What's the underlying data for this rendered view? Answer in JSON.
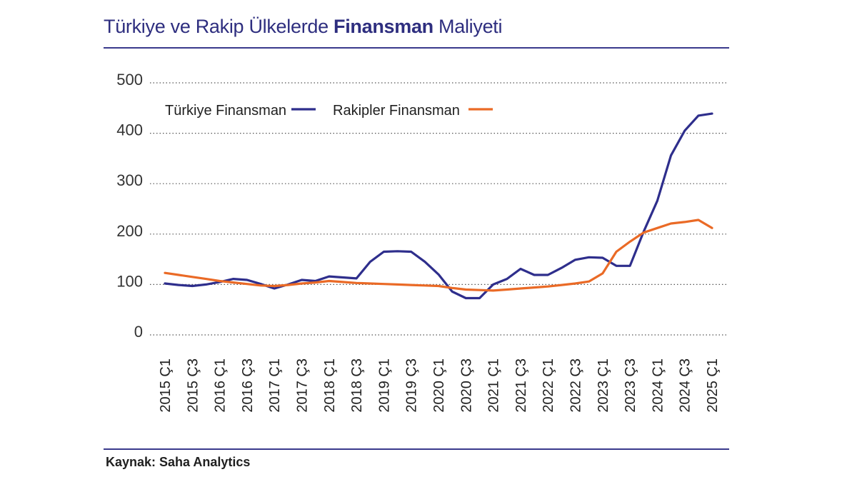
{
  "header": {
    "title_pre": "Türkiye ve Rakip Ülkelerde ",
    "title_bold": "Finansman",
    "title_post": " Maliyeti"
  },
  "footer": {
    "source": "Kaynak: Saha Analytics"
  },
  "colors": {
    "accent": "#2e2e7f",
    "series_turkiye": "#2e2e8c",
    "series_rakipler": "#ea6a26",
    "grid": "#555555"
  },
  "chart_data": {
    "type": "line",
    "title": "Türkiye ve Rakip Ülkelerde Finansman Maliyeti",
    "xlabel": "",
    "ylabel": "",
    "ylim": [
      0,
      500
    ],
    "yticks": [
      0,
      100,
      200,
      300,
      400,
      500
    ],
    "grid": true,
    "legend_position": "top-left",
    "x_tick_labels": [
      "2015 Ç1",
      "2015 Ç3",
      "2016 Ç1",
      "2016 Ç3",
      "2017 Ç1",
      "2017 Ç3",
      "2018 Ç1",
      "2018 Ç3",
      "2019 Ç1",
      "2019 Ç3",
      "2020 Ç1",
      "2020 Ç3",
      "2021 Ç1",
      "2021 Ç3",
      "2022 Ç1",
      "2022 Ç3",
      "2023 Ç1",
      "2023 Ç3",
      "2024 Ç1",
      "2024 Ç3",
      "2025 Ç1"
    ],
    "x": [
      "2015 Ç1",
      "2015 Ç2",
      "2015 Ç3",
      "2015 Ç4",
      "2016 Ç1",
      "2016 Ç2",
      "2016 Ç3",
      "2016 Ç4",
      "2017 Ç1",
      "2017 Ç2",
      "2017 Ç3",
      "2017 Ç4",
      "2018 Ç1",
      "2018 Ç2",
      "2018 Ç3",
      "2018 Ç4",
      "2019 Ç1",
      "2019 Ç2",
      "2019 Ç3",
      "2019 Ç4",
      "2020 Ç1",
      "2020 Ç2",
      "2020 Ç3",
      "2020 Ç4",
      "2021 Ç1",
      "2021 Ç2",
      "2021 Ç3",
      "2021 Ç4",
      "2022 Ç1",
      "2022 Ç2",
      "2022 Ç3",
      "2022 Ç4",
      "2023 Ç1",
      "2023 Ç2",
      "2023 Ç3",
      "2023 Ç4",
      "2024 Ç1",
      "2024 Ç2",
      "2024 Ç3",
      "2024 Ç4",
      "2025 Ç1"
    ],
    "series": [
      {
        "name": "Türkiye Finansman",
        "values": [
          102,
          99,
          97,
          100,
          105,
          111,
          109,
          101,
          92,
          100,
          109,
          107,
          116,
          114,
          112,
          145,
          165,
          166,
          165,
          145,
          120,
          86,
          73,
          73,
          100,
          111,
          131,
          119,
          119,
          133,
          149,
          154,
          153,
          137,
          137,
          205,
          266,
          356,
          405,
          435,
          439
        ]
      },
      {
        "name": "Rakipler Finansman",
        "values": [
          123,
          119,
          115,
          111,
          107,
          104,
          101,
          98,
          97,
          99,
          102,
          104,
          107,
          105,
          103,
          102,
          101,
          100,
          99,
          98,
          97,
          93,
          90,
          89,
          88,
          90,
          92,
          94,
          96,
          99,
          102,
          106,
          122,
          165,
          185,
          203,
          212,
          221,
          224,
          228,
          212
        ]
      }
    ]
  }
}
